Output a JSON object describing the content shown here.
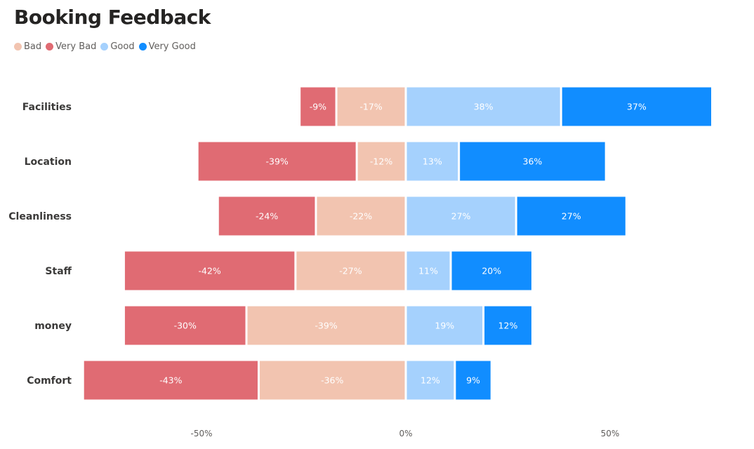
{
  "chart_data": {
    "type": "bar",
    "orientation": "horizontal-diverging-stacked",
    "title": "Booking Feedback",
    "categories": [
      "Facilities",
      "Location",
      "Cleanliness",
      "Staff",
      "money",
      "Comfort"
    ],
    "series": [
      {
        "name": "Bad",
        "color": "#f2c4b0",
        "values": [
          -17,
          -12,
          -22,
          -27,
          -39,
          -36
        ],
        "labels": [
          "-17%",
          "-12%",
          "-22%",
          "-27%",
          "-39%",
          "-36%"
        ]
      },
      {
        "name": "Very Bad",
        "color": "#e06b73",
        "values": [
          -9,
          -39,
          -24,
          -42,
          -30,
          -43
        ],
        "labels": [
          "-9%",
          "-39%",
          "-24%",
          "-42%",
          "-30%",
          "-43%"
        ]
      },
      {
        "name": "Good",
        "color": "#a5d1fd",
        "values": [
          38,
          13,
          27,
          11,
          19,
          12
        ],
        "labels": [
          "38%",
          "13%",
          "27%",
          "11%",
          "19%",
          "12%"
        ]
      },
      {
        "name": "Very Good",
        "color": "#118dff",
        "values": [
          37,
          36,
          27,
          20,
          12,
          9
        ],
        "labels": [
          "37%",
          "36%",
          "27%",
          "20%",
          "12%",
          "9%"
        ]
      }
    ],
    "stack_order": {
      "negative": [
        "Bad",
        "Very Bad"
      ],
      "positive": [
        "Good",
        "Very Good"
      ]
    },
    "xlim": [
      -80,
      75
    ],
    "xticks": [
      -50,
      0,
      50
    ],
    "xtick_labels": [
      "-50%",
      "0%",
      "50%"
    ],
    "grid": false,
    "legend_position": "top-left"
  }
}
